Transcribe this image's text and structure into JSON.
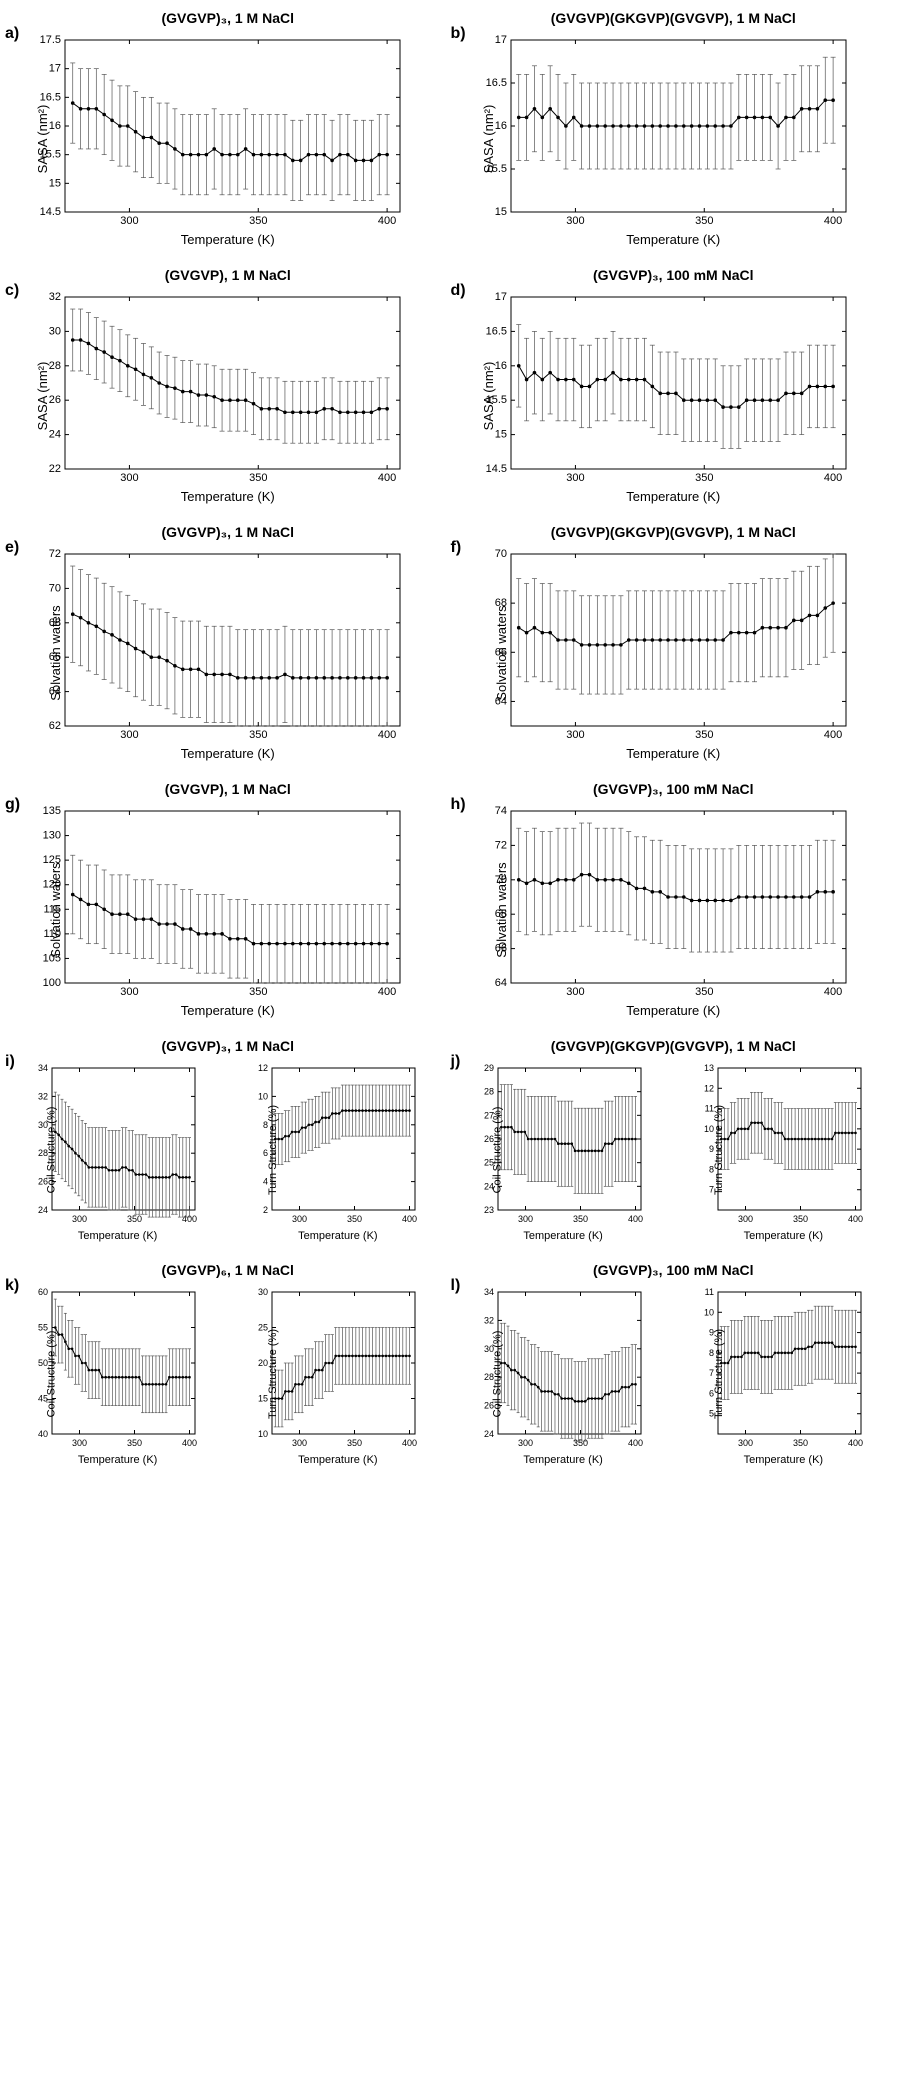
{
  "colors": {
    "stroke": "#000000",
    "bg": "#ffffff",
    "marker": "#000000",
    "err": "#555555"
  },
  "xlabel": "Temperature (K)",
  "xlim": [
    275,
    405
  ],
  "xticks": [
    300,
    350,
    400
  ],
  "panels": [
    {
      "id": "a",
      "title": "(GVGVP)₃, 1 M NaCl",
      "ylabel": "SASA (nm²)",
      "ylim": [
        14.5,
        17.5
      ],
      "yticks": [
        14.5,
        15,
        15.5,
        16,
        16.5,
        17,
        17.5
      ],
      "y": [
        16.4,
        16.3,
        16.3,
        16.3,
        16.2,
        16.1,
        16.0,
        16.0,
        15.9,
        15.8,
        15.8,
        15.7,
        15.7,
        15.6,
        15.5,
        15.5,
        15.5,
        15.5,
        15.6,
        15.5,
        15.5,
        15.5,
        15.6,
        15.5,
        15.5,
        15.5,
        15.5,
        15.5,
        15.4,
        15.4,
        15.5,
        15.5,
        15.5,
        15.4,
        15.5,
        15.5,
        15.4,
        15.4,
        15.4,
        15.5,
        15.5
      ],
      "err": 0.7
    },
    {
      "id": "b",
      "title": "(GVGVP)(GKGVP)(GVGVP), 1 M NaCl",
      "ylabel": "SASA (nm²)",
      "ylim": [
        15,
        17
      ],
      "yticks": [
        15,
        15.5,
        16,
        16.5,
        17
      ],
      "y": [
        16.1,
        16.1,
        16.2,
        16.1,
        16.2,
        16.1,
        16.0,
        16.1,
        16.0,
        16.0,
        16.0,
        16.0,
        16.0,
        16.0,
        16.0,
        16.0,
        16.0,
        16.0,
        16.0,
        16.0,
        16.0,
        16.0,
        16.0,
        16.0,
        16.0,
        16.0,
        16.0,
        16.0,
        16.1,
        16.1,
        16.1,
        16.1,
        16.1,
        16.0,
        16.1,
        16.1,
        16.2,
        16.2,
        16.2,
        16.3,
        16.3
      ],
      "err": 0.5
    },
    {
      "id": "c",
      "title": "(GVGVP), 1 M NaCl",
      "ylabel": "SASA (nm²)",
      "ylim": [
        22,
        32
      ],
      "yticks": [
        22,
        24,
        26,
        28,
        30,
        32
      ],
      "y": [
        29.5,
        29.5,
        29.3,
        29.0,
        28.8,
        28.5,
        28.3,
        28.0,
        27.8,
        27.5,
        27.3,
        27.0,
        26.8,
        26.7,
        26.5,
        26.5,
        26.3,
        26.3,
        26.2,
        26.0,
        26.0,
        26.0,
        26.0,
        25.8,
        25.5,
        25.5,
        25.5,
        25.3,
        25.3,
        25.3,
        25.3,
        25.3,
        25.5,
        25.5,
        25.3,
        25.3,
        25.3,
        25.3,
        25.3,
        25.5,
        25.5
      ],
      "err": 1.8
    },
    {
      "id": "d",
      "title": "(GVGVP)₃, 100 mM NaCl",
      "ylabel": "SASA (nm²)",
      "ylim": [
        14.5,
        17
      ],
      "yticks": [
        14.5,
        15,
        15.5,
        16,
        16.5,
        17
      ],
      "y": [
        16.0,
        15.8,
        15.9,
        15.8,
        15.9,
        15.8,
        15.8,
        15.8,
        15.7,
        15.7,
        15.8,
        15.8,
        15.9,
        15.8,
        15.8,
        15.8,
        15.8,
        15.7,
        15.6,
        15.6,
        15.6,
        15.5,
        15.5,
        15.5,
        15.5,
        15.5,
        15.4,
        15.4,
        15.4,
        15.5,
        15.5,
        15.5,
        15.5,
        15.5,
        15.6,
        15.6,
        15.6,
        15.7,
        15.7,
        15.7,
        15.7
      ],
      "err": 0.6
    },
    {
      "id": "e",
      "title": "(GVGVP)₃, 1 M NaCl",
      "ylabel": "Solvation waters",
      "ylim": [
        62,
        72
      ],
      "yticks": [
        62,
        64,
        66,
        68,
        70,
        72
      ],
      "y": [
        68.5,
        68.3,
        68.0,
        67.8,
        67.5,
        67.3,
        67.0,
        66.8,
        66.5,
        66.3,
        66.0,
        66.0,
        65.8,
        65.5,
        65.3,
        65.3,
        65.3,
        65.0,
        65.0,
        65.0,
        65.0,
        64.8,
        64.8,
        64.8,
        64.8,
        64.8,
        64.8,
        65.0,
        64.8,
        64.8,
        64.8,
        64.8,
        64.8,
        64.8,
        64.8,
        64.8,
        64.8,
        64.8,
        64.8,
        64.8,
        64.8
      ],
      "err": 2.8
    },
    {
      "id": "f",
      "title": "(GVGVP)(GKGVP)(GVGVP), 1 M NaCl",
      "ylabel": "Solvation waters",
      "ylim": [
        63,
        70
      ],
      "yticks": [
        64,
        66,
        68,
        70
      ],
      "y": [
        67.0,
        66.8,
        67.0,
        66.8,
        66.8,
        66.5,
        66.5,
        66.5,
        66.3,
        66.3,
        66.3,
        66.3,
        66.3,
        66.3,
        66.5,
        66.5,
        66.5,
        66.5,
        66.5,
        66.5,
        66.5,
        66.5,
        66.5,
        66.5,
        66.5,
        66.5,
        66.5,
        66.8,
        66.8,
        66.8,
        66.8,
        67.0,
        67.0,
        67.0,
        67.0,
        67.3,
        67.3,
        67.5,
        67.5,
        67.8,
        68.0
      ],
      "err": 2.0
    },
    {
      "id": "g",
      "title": "(GVGVP), 1 M NaCl",
      "ylabel": "Solvation waters",
      "ylim": [
        100,
        135
      ],
      "yticks": [
        100,
        105,
        110,
        115,
        120,
        125,
        130,
        135
      ],
      "y": [
        118,
        117,
        116,
        116,
        115,
        114,
        114,
        114,
        113,
        113,
        113,
        112,
        112,
        112,
        111,
        111,
        110,
        110,
        110,
        110,
        109,
        109,
        109,
        108,
        108,
        108,
        108,
        108,
        108,
        108,
        108,
        108,
        108,
        108,
        108,
        108,
        108,
        108,
        108,
        108,
        108
      ],
      "err": 8
    },
    {
      "id": "h",
      "title": "(GVGVP)₃, 100 mM NaCl",
      "ylabel": "Solvation waters",
      "ylim": [
        64,
        74
      ],
      "yticks": [
        64,
        66,
        68,
        70,
        72,
        74
      ],
      "y": [
        70.0,
        69.8,
        70.0,
        69.8,
        69.8,
        70.0,
        70.0,
        70.0,
        70.3,
        70.3,
        70.0,
        70.0,
        70.0,
        70.0,
        69.8,
        69.5,
        69.5,
        69.3,
        69.3,
        69.0,
        69.0,
        69.0,
        68.8,
        68.8,
        68.8,
        68.8,
        68.8,
        68.8,
        69.0,
        69.0,
        69.0,
        69.0,
        69.0,
        69.0,
        69.0,
        69.0,
        69.0,
        69.0,
        69.3,
        69.3,
        69.3
      ],
      "err": 3.0
    },
    {
      "id": "i1",
      "title": "(GVGVP)₃, 1 M NaCl",
      "ylabel": "Coil Structure (%)",
      "ylim": [
        24,
        34
      ],
      "yticks": [
        24,
        26,
        28,
        30,
        32,
        34
      ],
      "y": [
        29.5,
        29.3,
        29.0,
        28.8,
        28.5,
        28.3,
        28.0,
        27.8,
        27.5,
        27.3,
        27.0,
        27.0,
        27.0,
        27.0,
        27.0,
        27.0,
        26.8,
        26.8,
        26.8,
        26.8,
        27.0,
        27.0,
        26.8,
        26.8,
        26.5,
        26.5,
        26.5,
        26.5,
        26.3,
        26.3,
        26.3,
        26.3,
        26.3,
        26.3,
        26.3,
        26.5,
        26.5,
        26.3,
        26.3,
        26.3,
        26.3
      ],
      "err": 2.8
    },
    {
      "id": "i2",
      "ylabel": "Turn Structure (%)",
      "ylim": [
        2,
        12
      ],
      "yticks": [
        2,
        4,
        6,
        8,
        10,
        12
      ],
      "y": [
        7.0,
        7.0,
        7.0,
        7.2,
        7.2,
        7.5,
        7.5,
        7.5,
        7.8,
        7.8,
        8.0,
        8.0,
        8.2,
        8.2,
        8.5,
        8.5,
        8.5,
        8.8,
        8.8,
        8.8,
        9.0,
        9.0,
        9.0,
        9.0,
        9.0,
        9.0,
        9.0,
        9.0,
        9.0,
        9.0,
        9.0,
        9.0,
        9.0,
        9.0,
        9.0,
        9.0,
        9.0,
        9.0,
        9.0,
        9.0,
        9.0
      ],
      "err": 1.8
    },
    {
      "id": "j1",
      "title": "(GVGVP)(GKGVP)(GVGVP), 1 M NaCl",
      "ylabel": "Coil Structure (%)",
      "ylim": [
        23,
        29
      ],
      "yticks": [
        23,
        24,
        25,
        26,
        27,
        28,
        29
      ],
      "y": [
        26.5,
        26.5,
        26.5,
        26.5,
        26.3,
        26.3,
        26.3,
        26.3,
        26.0,
        26.0,
        26.0,
        26.0,
        26.0,
        26.0,
        26.0,
        26.0,
        26.0,
        25.8,
        25.8,
        25.8,
        25.8,
        25.8,
        25.5,
        25.5,
        25.5,
        25.5,
        25.5,
        25.5,
        25.5,
        25.5,
        25.5,
        25.8,
        25.8,
        25.8,
        26.0,
        26.0,
        26.0,
        26.0,
        26.0,
        26.0,
        26.0
      ],
      "err": 1.8
    },
    {
      "id": "j2",
      "ylabel": "Turn Structure (%)",
      "ylim": [
        6,
        13
      ],
      "yticks": [
        7,
        8,
        9,
        10,
        11,
        12,
        13
      ],
      "y": [
        9.5,
        9.5,
        9.5,
        9.8,
        9.8,
        10.0,
        10.0,
        10.0,
        10.0,
        10.3,
        10.3,
        10.3,
        10.3,
        10.0,
        10.0,
        10.0,
        9.8,
        9.8,
        9.8,
        9.5,
        9.5,
        9.5,
        9.5,
        9.5,
        9.5,
        9.5,
        9.5,
        9.5,
        9.5,
        9.5,
        9.5,
        9.5,
        9.5,
        9.5,
        9.8,
        9.8,
        9.8,
        9.8,
        9.8,
        9.8,
        9.8
      ],
      "err": 1.5
    },
    {
      "id": "k1",
      "title": "(GVGVP)₆, 1 M NaCl",
      "ylabel": "Coil Structure (%)",
      "ylim": [
        40,
        60
      ],
      "yticks": [
        40,
        45,
        50,
        55,
        60
      ],
      "y": [
        55,
        54,
        54,
        53,
        52,
        52,
        51,
        51,
        50,
        50,
        49,
        49,
        49,
        49,
        48,
        48,
        48,
        48,
        48,
        48,
        48,
        48,
        48,
        48,
        48,
        48,
        47,
        47,
        47,
        47,
        47,
        47,
        47,
        47,
        48,
        48,
        48,
        48,
        48,
        48,
        48
      ],
      "err": 4
    },
    {
      "id": "k2",
      "ylabel": "Turn Structure (%)",
      "ylim": [
        10,
        30
      ],
      "yticks": [
        10,
        15,
        20,
        25,
        30
      ],
      "y": [
        15,
        15,
        15,
        16,
        16,
        16,
        17,
        17,
        17,
        18,
        18,
        18,
        19,
        19,
        19,
        20,
        20,
        20,
        21,
        21,
        21,
        21,
        21,
        21,
        21,
        21,
        21,
        21,
        21,
        21,
        21,
        21,
        21,
        21,
        21,
        21,
        21,
        21,
        21,
        21,
        21
      ],
      "err": 4
    },
    {
      "id": "l1",
      "title": "(GVGVP)₃, 100 mM NaCl",
      "ylabel": "Coil Structure (%)",
      "ylim": [
        24,
        34
      ],
      "yticks": [
        24,
        26,
        28,
        30,
        32,
        34
      ],
      "y": [
        29.0,
        29.0,
        28.8,
        28.5,
        28.5,
        28.3,
        28.0,
        28.0,
        27.8,
        27.5,
        27.5,
        27.3,
        27.0,
        27.0,
        27.0,
        27.0,
        26.8,
        26.8,
        26.5,
        26.5,
        26.5,
        26.5,
        26.3,
        26.3,
        26.3,
        26.3,
        26.5,
        26.5,
        26.5,
        26.5,
        26.5,
        26.8,
        26.8,
        27.0,
        27.0,
        27.0,
        27.3,
        27.3,
        27.3,
        27.5,
        27.5
      ],
      "err": 2.8
    },
    {
      "id": "l2",
      "ylabel": "Turn Structure (%)",
      "ylim": [
        4,
        11
      ],
      "yticks": [
        5,
        6,
        7,
        8,
        9,
        10,
        11
      ],
      "y": [
        7.5,
        7.5,
        7.5,
        7.8,
        7.8,
        7.8,
        7.8,
        8.0,
        8.0,
        8.0,
        8.0,
        8.0,
        7.8,
        7.8,
        7.8,
        7.8,
        8.0,
        8.0,
        8.0,
        8.0,
        8.0,
        8.0,
        8.2,
        8.2,
        8.2,
        8.2,
        8.3,
        8.3,
        8.5,
        8.5,
        8.5,
        8.5,
        8.5,
        8.5,
        8.3,
        8.3,
        8.3,
        8.3,
        8.3,
        8.3,
        8.3
      ],
      "err": 1.8
    }
  ]
}
